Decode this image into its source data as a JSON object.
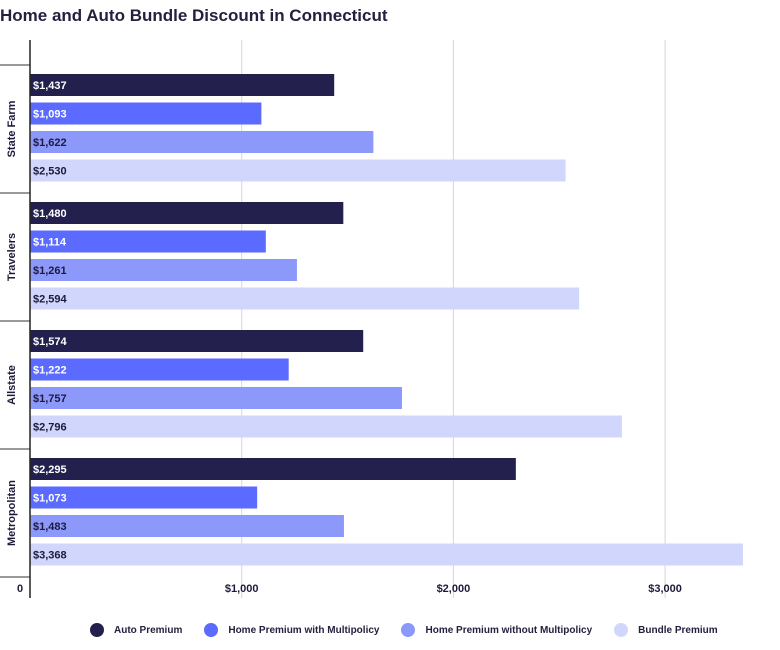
{
  "chart_data": {
    "type": "bar",
    "orientation": "horizontal",
    "title": "Home and Auto Bundle Discount in Connecticut",
    "categories": [
      "State Farm",
      "Travelers",
      "Allstate",
      "Metropolitan"
    ],
    "series": [
      {
        "name": "Auto Premium",
        "color": "#23204d",
        "values": [
          1437,
          1480,
          1574,
          2295
        ],
        "labels": [
          "$1,437",
          "$1,480",
          "$1,574",
          "$2,295"
        ]
      },
      {
        "name": "Home Premium with Multipolicy",
        "color": "#5b6bff",
        "values": [
          1093,
          1114,
          1222,
          1073
        ],
        "labels": [
          "$1,093",
          "$1,114",
          "$1,222",
          "$1,073"
        ]
      },
      {
        "name": "Home Premium without Multipolicy",
        "color": "#8c99fb",
        "values": [
          1622,
          1261,
          1757,
          1483
        ],
        "labels": [
          "$1,622",
          "$1,261",
          "$1,757",
          "$1,483"
        ]
      },
      {
        "name": "Bundle Premium",
        "color": "#d1d6fd",
        "values": [
          2530,
          2594,
          2796,
          3368
        ],
        "labels": [
          "$2,530",
          "$2,594",
          "$2,796",
          "$3,368"
        ]
      }
    ],
    "xlim": [
      0,
      3368
    ],
    "xticks": [
      0,
      1000,
      2000,
      3000
    ],
    "xtick_labels": [
      "0",
      "$1,000",
      "$2,000",
      "$3,000"
    ],
    "grid": true,
    "legend_position": "bottom"
  }
}
